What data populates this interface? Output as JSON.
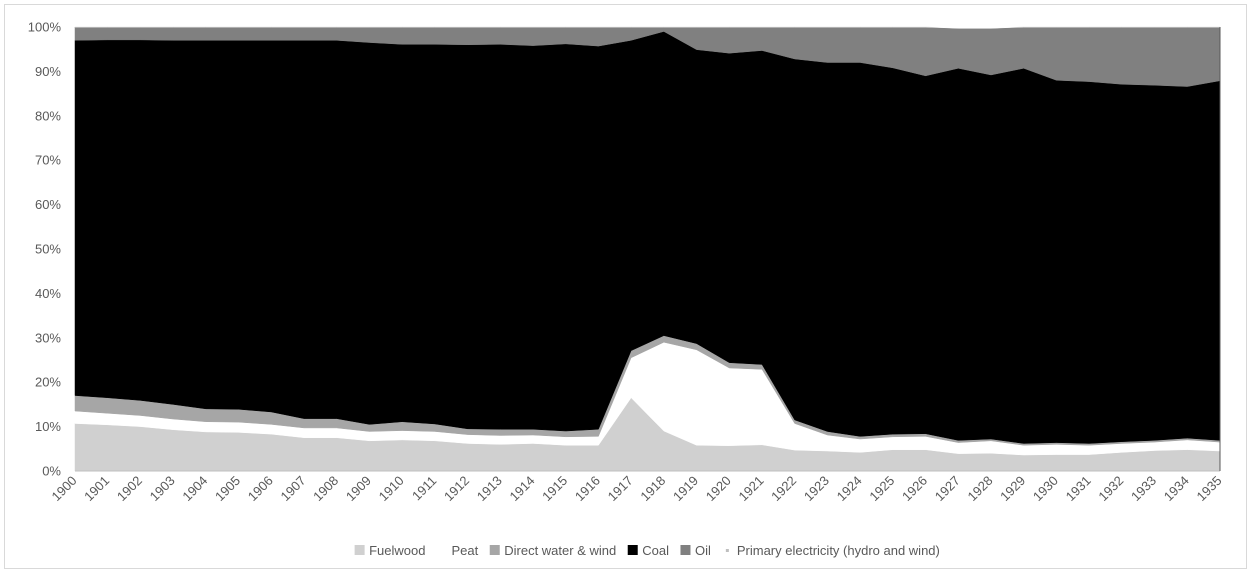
{
  "chart_data": {
    "type": "area",
    "stacked": true,
    "percent": true,
    "title": "",
    "xlabel": "",
    "ylabel": "",
    "ylim": [
      0,
      100
    ],
    "y_ticks": [
      "0%",
      "10%",
      "20%",
      "30%",
      "40%",
      "50%",
      "60%",
      "70%",
      "80%",
      "90%",
      "100%"
    ],
    "grid": false,
    "legend_position": "bottom",
    "categories": [
      "1900",
      "1901",
      "1902",
      "1903",
      "1904",
      "1905",
      "1906",
      "1907",
      "1908",
      "1909",
      "1910",
      "1911",
      "1912",
      "1913",
      "1914",
      "1915",
      "1916",
      "1917",
      "1918",
      "1919",
      "1920",
      "1921",
      "1922",
      "1923",
      "1924",
      "1925",
      "1926",
      "1927",
      "1928",
      "1929",
      "1930",
      "1931",
      "1932",
      "1933",
      "1934",
      "1935"
    ],
    "series": [
      {
        "name": "Fuelwood",
        "color": "#d0d0d0",
        "values": [
          10.7,
          10.4,
          10.0,
          9.3,
          8.8,
          8.7,
          8.3,
          7.5,
          7.5,
          6.8,
          7.0,
          6.8,
          6.2,
          6.0,
          6.2,
          5.8,
          5.8,
          16.5,
          9.0,
          5.8,
          5.7,
          5.9,
          4.7,
          4.5,
          4.2,
          4.8,
          4.8,
          3.9,
          4.0,
          3.6,
          3.7,
          3.7,
          4.2,
          4.6,
          4.8,
          4.5
        ]
      },
      {
        "name": "Peat",
        "color": "#ffffff",
        "values": [
          2.8,
          2.6,
          2.5,
          2.4,
          2.3,
          2.3,
          2.2,
          2.2,
          2.2,
          2.1,
          2.1,
          2.1,
          2.0,
          2.0,
          1.9,
          1.9,
          2.0,
          9.0,
          20.0,
          21.5,
          17.5,
          17.0,
          6.0,
          3.6,
          3.0,
          2.9,
          3.0,
          2.5,
          2.8,
          2.2,
          2.3,
          2.1,
          2.0,
          1.9,
          2.2,
          2.0
        ]
      },
      {
        "name": "Direct water & wind",
        "color": "#a6a6a6",
        "values": [
          3.5,
          3.5,
          3.4,
          3.3,
          2.9,
          2.9,
          2.8,
          2.1,
          2.1,
          1.6,
          2.0,
          1.7,
          1.3,
          1.4,
          1.3,
          1.3,
          1.6,
          1.6,
          1.5,
          1.4,
          1.2,
          1.1,
          0.8,
          0.8,
          0.6,
          0.6,
          0.6,
          0.5,
          0.4,
          0.4,
          0.4,
          0.4,
          0.4,
          0.4,
          0.4,
          0.4
        ]
      },
      {
        "name": "Coal",
        "color": "#000000",
        "values": [
          80.0,
          80.6,
          81.2,
          82.0,
          83.0,
          83.1,
          83.7,
          85.2,
          85.2,
          86.0,
          85.0,
          85.5,
          86.5,
          86.7,
          86.4,
          87.2,
          86.3,
          69.9,
          68.5,
          66.2,
          69.7,
          70.7,
          81.3,
          83.1,
          84.2,
          82.5,
          80.6,
          83.8,
          82.0,
          84.5,
          81.6,
          81.5,
          80.5,
          79.9,
          79.1,
          81.0
        ]
      },
      {
        "name": "Oil",
        "color": "#808080",
        "values": [
          3.0,
          2.9,
          2.9,
          3.0,
          3.0,
          3.0,
          3.0,
          3.0,
          3.0,
          3.5,
          3.9,
          3.9,
          4.0,
          3.9,
          4.2,
          3.8,
          4.3,
          3.0,
          1.0,
          5.1,
          5.9,
          5.3,
          7.2,
          8.0,
          8.0,
          9.2,
          11.0,
          9.0,
          10.5,
          9.3,
          12.0,
          12.3,
          12.9,
          13.1,
          13.4,
          12.1
        ]
      },
      {
        "name": "Primary electricity (hydro and wind)",
        "color": "#ffffff",
        "values": [
          0,
          0,
          0,
          0,
          0,
          0,
          0,
          0,
          0,
          0,
          0,
          0,
          0,
          0,
          0,
          0,
          0,
          0,
          0,
          0,
          0,
          0,
          0,
          0,
          0,
          0,
          0,
          0.3,
          0.3,
          0,
          0,
          0,
          0,
          0,
          0,
          0
        ]
      }
    ]
  }
}
